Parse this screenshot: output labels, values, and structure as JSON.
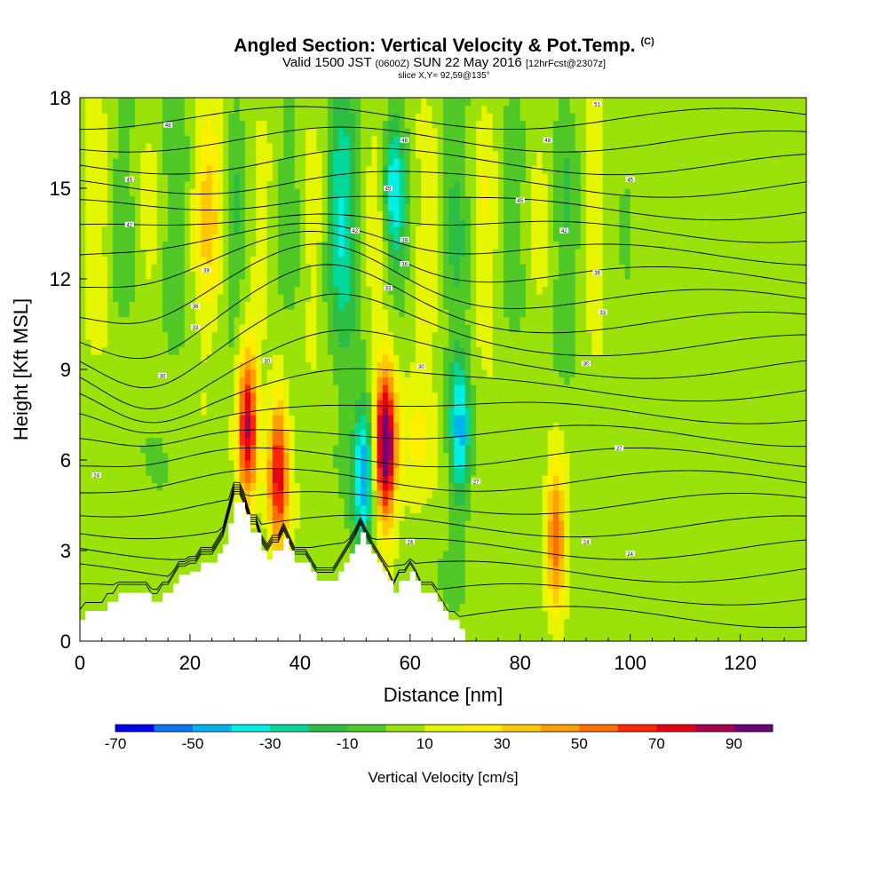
{
  "header": {
    "title": "Angled Section: Vertical Velocity & Pot.Temp.",
    "title_unit": "(C)",
    "valid_pre": "Valid 1500 JST",
    "valid_zulu": "(0600Z)",
    "valid_date": "SUN 22 May 2016",
    "forecast": "[12hrFcst@2307z]",
    "slice": "slice X,Y= 92,59@135°"
  },
  "chart_data": {
    "type": "heatmap",
    "xlabel": "Distance [nm]",
    "ylabel": "Height [Kft MSL]",
    "xlim": [
      0,
      132
    ],
    "ylim": [
      0,
      18
    ],
    "xticks": [
      0,
      20,
      40,
      60,
      80,
      100,
      120
    ],
    "yticks": [
      0,
      3,
      6,
      9,
      12,
      15,
      18
    ],
    "colorbar": {
      "label": "Vertical Velocity [cm/s]",
      "levels": [
        -70,
        -60,
        -50,
        -40,
        -30,
        -20,
        -10,
        0,
        10,
        20,
        30,
        40,
        50,
        60,
        70,
        80,
        90,
        100
      ],
      "tick_labels": [
        "-70",
        "-50",
        "-30",
        "-10",
        "10",
        "30",
        "50",
        "70",
        "90"
      ],
      "colors": [
        "#0000f0",
        "#0a78f0",
        "#00b4f0",
        "#00f0e6",
        "#00d79a",
        "#2dbe46",
        "#50c828",
        "#9be10a",
        "#e6f500",
        "#fff000",
        "#ffc800",
        "#ffa000",
        "#ff6e00",
        "#ff2800",
        "#e60014",
        "#aa0050",
        "#6e0078"
      ]
    },
    "updrafts": [
      {
        "x": 30.5,
        "z": 7.2,
        "peak": 80
      },
      {
        "x": 36,
        "z": 5.5,
        "peak": 70
      },
      {
        "x": 55.5,
        "z": 6.5,
        "peak": 95
      },
      {
        "x": 86.5,
        "z": 3.5,
        "peak": 55
      }
    ],
    "downdrafts": [
      {
        "x": 51.5,
        "z": 5.5,
        "peak": -50
      },
      {
        "x": 69,
        "z": 7.0,
        "peak": -45
      },
      {
        "x": 57,
        "z": 15,
        "peak": -35
      }
    ],
    "terrain": {
      "x": [
        0,
        1,
        1,
        5,
        5,
        7,
        7,
        9,
        9,
        13,
        13,
        15,
        15,
        17,
        17,
        18,
        18,
        20,
        20,
        22,
        22,
        25,
        25,
        26,
        26,
        27,
        27,
        28,
        28,
        30,
        30,
        31,
        31,
        33,
        33,
        34,
        34,
        35,
        35,
        37,
        37,
        38,
        38,
        39,
        39,
        42,
        42,
        43,
        43,
        47,
        47,
        48,
        48,
        49,
        49,
        50,
        50,
        51,
        51,
        52,
        52,
        53,
        53,
        54,
        54,
        55,
        55,
        56,
        56,
        57,
        57,
        58,
        58,
        60,
        60,
        61,
        61,
        62,
        62,
        65,
        65,
        66,
        66,
        67,
        67,
        69,
        69,
        70,
        70,
        71,
        71
      ],
      "z": [
        0.7,
        0.7,
        1.0,
        1.0,
        1.3,
        1.3,
        1.6,
        1.6,
        1.6,
        1.6,
        1.3,
        1.3,
        1.6,
        1.6,
        1.9,
        1.9,
        2.2,
        2.2,
        2.3,
        2.3,
        2.6,
        2.6,
        2.9,
        2.9,
        3.2,
        3.2,
        3.9,
        3.9,
        4.6,
        4.6,
        4.2,
        4.2,
        3.6,
        3.6,
        3.0,
        3.0,
        2.7,
        2.7,
        3.0,
        3.0,
        3.4,
        3.4,
        3.0,
        3.0,
        2.6,
        2.6,
        2.3,
        2.3,
        2.0,
        2.0,
        2.3,
        2.3,
        2.6,
        2.6,
        2.9,
        2.9,
        3.2,
        3.2,
        3.6,
        3.6,
        3.2,
        3.2,
        2.9,
        2.9,
        2.6,
        2.6,
        2.3,
        2.3,
        2.0,
        2.0,
        1.6,
        1.6,
        2.0,
        2.0,
        2.3,
        2.3,
        2.0,
        2.0,
        1.6,
        1.6,
        1.3,
        1.3,
        1.0,
        1.0,
        0.7,
        0.7,
        0.4,
        0.4,
        0.0,
        0.0,
        0.0
      ]
    },
    "isentrope_labels": [
      {
        "x": 16,
        "z": 17.1,
        "text": "48"
      },
      {
        "x": 9,
        "z": 15.3,
        "text": "45"
      },
      {
        "x": 9,
        "z": 13.8,
        "text": "42"
      },
      {
        "x": 23,
        "z": 12.3,
        "text": "39"
      },
      {
        "x": 21,
        "z": 11.1,
        "text": "36"
      },
      {
        "x": 21,
        "z": 10.4,
        "text": "33"
      },
      {
        "x": 15,
        "z": 8.8,
        "text": "30"
      },
      {
        "x": 3,
        "z": 5.5,
        "text": "24"
      },
      {
        "x": 34,
        "z": 9.3,
        "text": "30"
      },
      {
        "x": 50,
        "z": 13.6,
        "text": "42"
      },
      {
        "x": 56,
        "z": 15.0,
        "text": "45"
      },
      {
        "x": 59,
        "z": 16.6,
        "text": "48"
      },
      {
        "x": 59,
        "z": 13.3,
        "text": "39"
      },
      {
        "x": 59,
        "z": 12.5,
        "text": "36"
      },
      {
        "x": 56,
        "z": 11.7,
        "text": "33"
      },
      {
        "x": 62,
        "z": 9.1,
        "text": "30"
      },
      {
        "x": 80,
        "z": 14.6,
        "text": "45"
      },
      {
        "x": 85,
        "z": 16.6,
        "text": "48"
      },
      {
        "x": 88,
        "z": 13.6,
        "text": "42"
      },
      {
        "x": 100,
        "z": 15.3,
        "text": "45"
      },
      {
        "x": 94,
        "z": 17.8,
        "text": "51"
      },
      {
        "x": 94,
        "z": 12.2,
        "text": "36"
      },
      {
        "x": 95,
        "z": 10.9,
        "text": "33"
      },
      {
        "x": 92,
        "z": 9.2,
        "text": "30"
      },
      {
        "x": 98,
        "z": 6.4,
        "text": "27"
      },
      {
        "x": 72,
        "z": 5.3,
        "text": "27"
      },
      {
        "x": 60,
        "z": 3.3,
        "text": "24"
      },
      {
        "x": 92,
        "z": 3.3,
        "text": "24"
      },
      {
        "x": 100,
        "z": 2.9,
        "text": "24"
      }
    ]
  }
}
